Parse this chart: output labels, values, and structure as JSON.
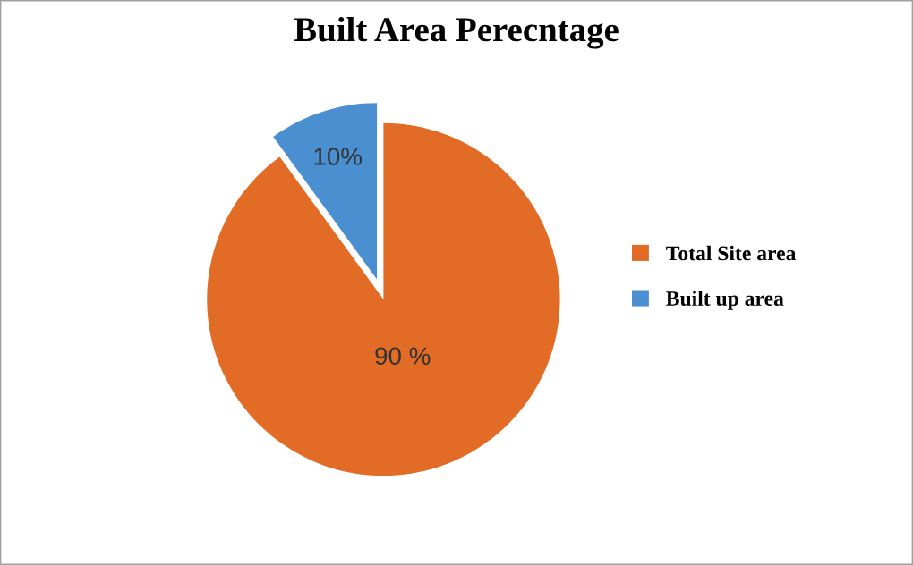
{
  "chart_data": {
    "type": "pie",
    "title": "Built Area Perecntage",
    "categories": [
      "Total Site area",
      "Built up area"
    ],
    "values": [
      90,
      10
    ],
    "colors": [
      "#e26b26",
      "#4a8fd0"
    ],
    "value_labels": [
      "90 %",
      "10%"
    ],
    "legend": "right"
  }
}
